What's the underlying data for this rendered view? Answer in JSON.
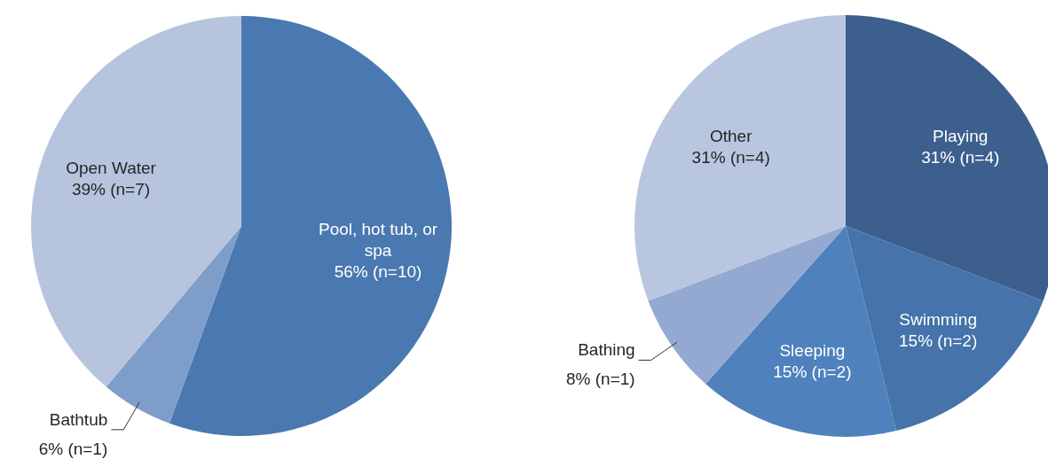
{
  "chart_data": [
    {
      "type": "pie",
      "categories": [
        "Pool, hot tub, or spa",
        "Bathtub",
        "Open Water"
      ],
      "values": [
        10,
        1,
        7
      ],
      "colors": [
        "#4a78b0",
        "#7f9dc9",
        "#b7c4de"
      ],
      "value_labels": [
        "56% (n=10)",
        "6% (n=1)",
        "39% (n=7)"
      ]
    },
    {
      "type": "pie",
      "categories": [
        "Playing",
        "Swimming",
        "Sleeping",
        "Bathing",
        "Other"
      ],
      "values": [
        4,
        2,
        2,
        1,
        4
      ],
      "colors": [
        "#3c5f8e",
        "#4573aa",
        "#4f81bd",
        "#93a9d1",
        "#b9c6e0"
      ],
      "value_labels": [
        "31% (n=4)",
        "15% (n=2)",
        "15% (n=2)",
        "8% (n=1)",
        "31% (n=4)"
      ]
    }
  ]
}
